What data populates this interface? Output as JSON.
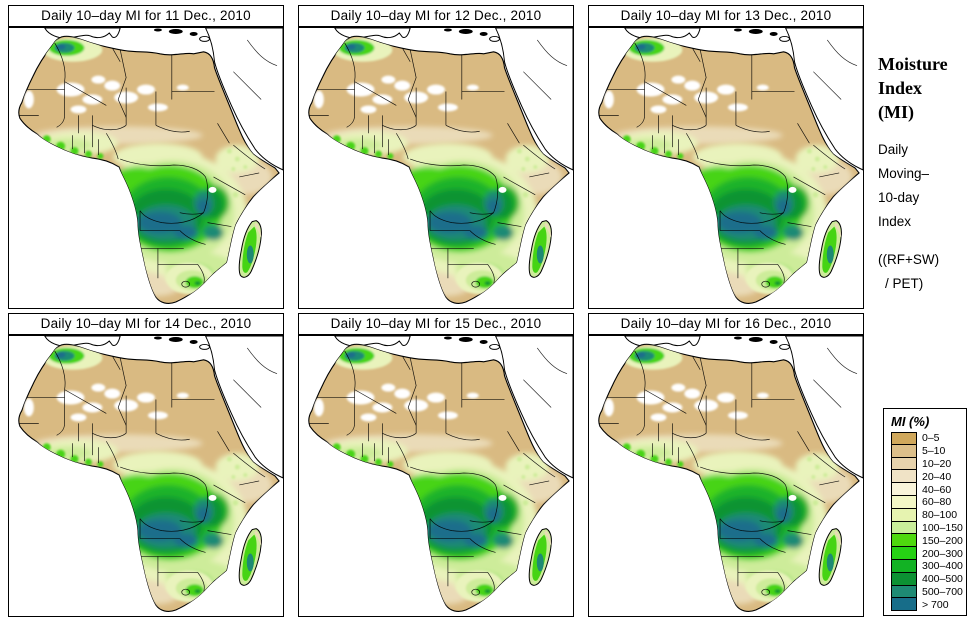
{
  "panels": [
    {
      "title": "Daily 10–day MI for 11 Dec., 2010"
    },
    {
      "title": "Daily 10–day MI for 12 Dec., 2010"
    },
    {
      "title": "Daily 10–day MI for 13 Dec., 2010"
    },
    {
      "title": "Daily 10–day MI for 14 Dec., 2010"
    },
    {
      "title": "Daily 10–day MI for 15 Dec., 2010"
    },
    {
      "title": "Daily 10–day MI for 16 Dec., 2010"
    }
  ],
  "sidebar": {
    "heading_line1": "Moisture",
    "heading_line2": "Index",
    "heading_line3": "(MI)",
    "sub_line1": "Daily",
    "sub_line2": "Moving–",
    "sub_line3": "10-day",
    "sub_line4": "Index",
    "formula_line1": "((RF+SW)",
    "formula_line2": "/ PET)"
  },
  "legend": {
    "title": "MI (%)",
    "entries": [
      {
        "label": "0–5",
        "color": "#d0a85c"
      },
      {
        "label": "5–10",
        "color": "#dcbf8a"
      },
      {
        "label": "10–20",
        "color": "#e7d3ac"
      },
      {
        "label": "20–40",
        "color": "#f0e3c6"
      },
      {
        "label": "40–60",
        "color": "#f9f4da"
      },
      {
        "label": "60–80",
        "color": "#f3f7c6"
      },
      {
        "label": "80–100",
        "color": "#e6f3b0"
      },
      {
        "label": "100–150",
        "color": "#c9ee9a"
      },
      {
        "label": "150–200",
        "color": "#4ed90e"
      },
      {
        "label": "200–300",
        "color": "#26d114"
      },
      {
        "label": "300–400",
        "color": "#12b224"
      },
      {
        "label": "400–500",
        "color": "#0c9133"
      },
      {
        "label": "500–700",
        "color": "#1e8a74"
      },
      {
        "label": "> 700",
        "color": "#176d89"
      }
    ]
  },
  "map_palette": {
    "sea": "#ffffff",
    "land_dry": "#d9ba82",
    "land_pale": "#eadbb8",
    "cream": "#f6f0d0",
    "pale_green": "#e9f3bc",
    "light_green": "#cdec9a",
    "green_bright": "#46d414",
    "green": "#1fb32a",
    "green_dark": "#0e9433",
    "teal": "#1e8a74",
    "teal_dark": "#1c6e8b",
    "outline": "#000000"
  }
}
